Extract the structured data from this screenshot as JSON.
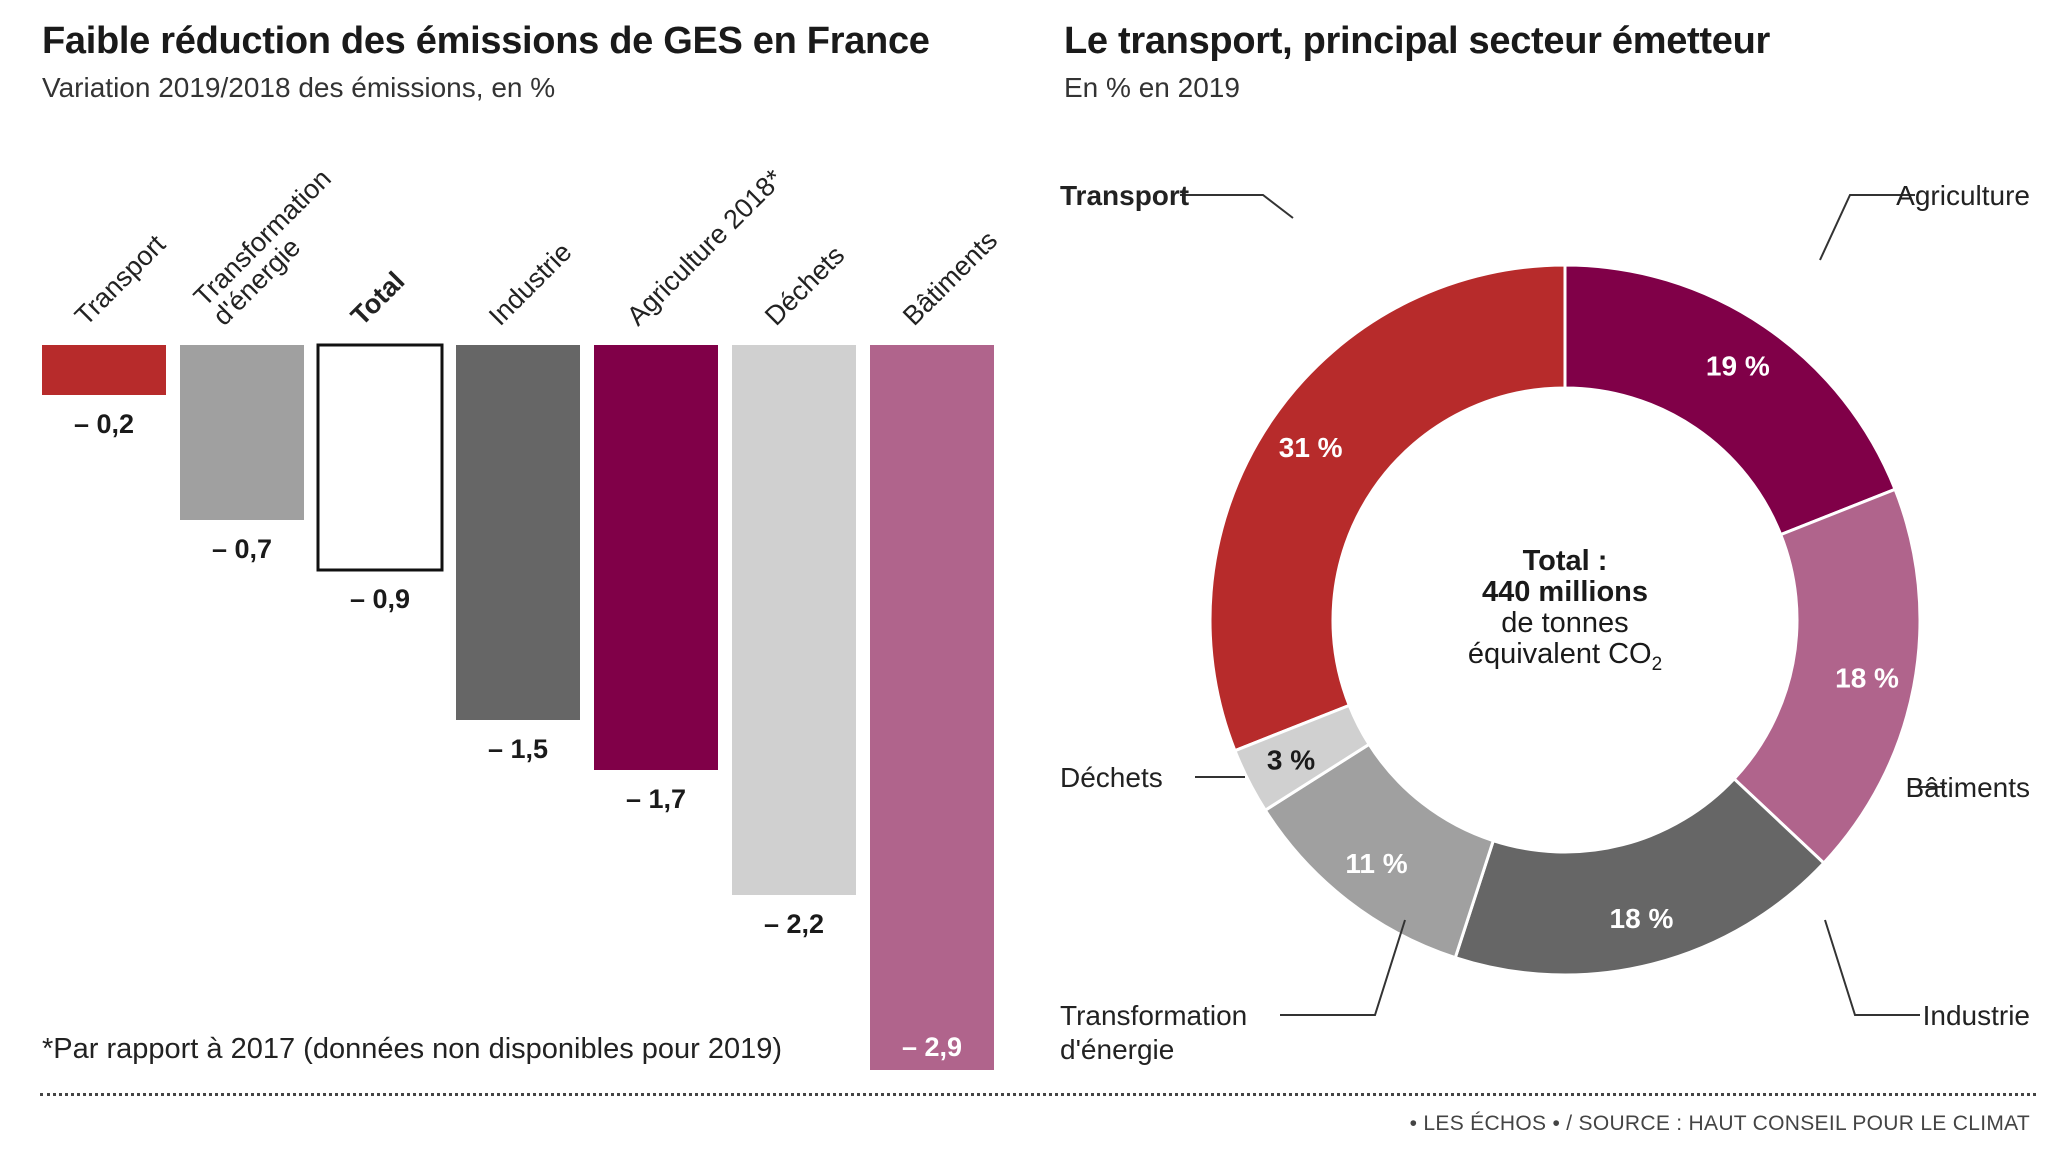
{
  "left": {
    "title": "Faible réduction des émissions de GES en France",
    "subtitle": "Variation 2019/2018 des émissions, en %",
    "footnote": "*Par rapport à 2017 (données non disponibles pour 2019)"
  },
  "right": {
    "title": "Le transport, principal secteur émetteur",
    "subtitle": "En % en 2019",
    "center_line1": "Total :",
    "center_line2": "440 millions",
    "center_line3": "de tonnes",
    "center_line4": "équivalent CO",
    "center_subscript": "2"
  },
  "source": "• LES ÉCHOS • / SOURCE : HAUT CONSEIL POUR LE CLIMAT",
  "chart_data": [
    {
      "type": "bar",
      "title": "Faible réduction des émissions de GES en France",
      "subtitle": "Variation 2019/2018 des émissions, en %",
      "categories": [
        "Transport",
        "Transformation d'énergie",
        "Total",
        "Industrie",
        "Agriculture 2018*",
        "Déchets",
        "Bâtiments"
      ],
      "values": [
        -0.2,
        -0.7,
        -0.9,
        -1.5,
        -1.7,
        -2.2,
        -2.9
      ],
      "value_labels": [
        "– 0,2",
        "– 0,7",
        "– 0,9",
        "– 1,5",
        "– 1,7",
        "– 2,2",
        "– 2,9"
      ],
      "colors": [
        "#b72b2b",
        "#a0a0a0",
        "#ffffff",
        "#666666",
        "#800048",
        "#d0d0d0",
        "#b0648c"
      ],
      "highlight": "Total",
      "ylim": [
        -2.9,
        0
      ],
      "grid": false
    },
    {
      "type": "pie",
      "title": "Le transport, principal secteur émetteur",
      "subtitle": "En % en 2019",
      "categories": [
        "Transport",
        "Agriculture",
        "Bâtiments",
        "Industrie",
        "Transformation d'énergie",
        "Déchets"
      ],
      "values": [
        31,
        19,
        18,
        18,
        11,
        3
      ],
      "value_labels": [
        "31 %",
        "19 %",
        "18 %",
        "18 %",
        "11 %",
        "3 %"
      ],
      "colors": [
        "#b72b2b",
        "#800048",
        "#b0648c",
        "#666666",
        "#a0a0a0",
        "#d0d0d0"
      ],
      "donut": true
    }
  ]
}
